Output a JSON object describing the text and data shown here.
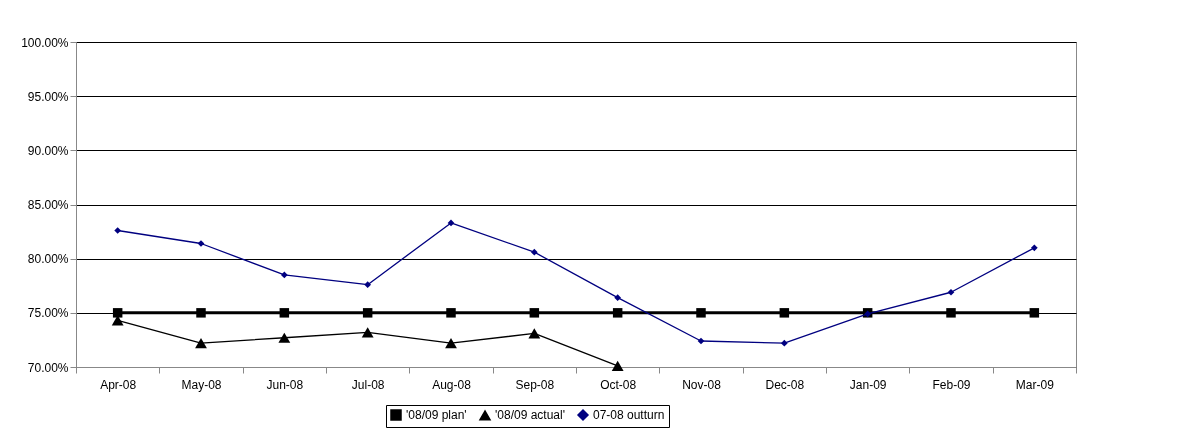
{
  "chart_data": {
    "type": "line",
    "categories": [
      "Apr-08",
      "May-08",
      "Jun-08",
      "Jul-08",
      "Aug-08",
      "Sep-08",
      "Oct-08",
      "Nov-08",
      "Dec-08",
      "Jan-09",
      "Feb-09",
      "Mar-09"
    ],
    "series": [
      {
        "name": "'08/09 plan'",
        "color": "#000000",
        "marker": "square",
        "values": [
          75,
          75,
          75,
          75,
          75,
          75,
          75,
          75,
          75,
          75,
          75,
          75
        ]
      },
      {
        "name": "'08/09 actual'",
        "color": "#000000",
        "marker": "triangle",
        "values": [
          74.3,
          72.2,
          72.7,
          73.2,
          72.2,
          73.1,
          70.1,
          null,
          null,
          null,
          null,
          null
        ]
      },
      {
        "name": "07-08 outturn",
        "color": "#000080",
        "marker": "diamond",
        "values": [
          82.6,
          81.4,
          78.5,
          77.6,
          83.3,
          80.6,
          76.4,
          72.4,
          72.2,
          74.9,
          76.9,
          81.0
        ]
      }
    ],
    "ylim": [
      70,
      100
    ],
    "yticks": [
      {
        "value": 70,
        "label": "70.00%"
      },
      {
        "value": 75,
        "label": "75.00%"
      },
      {
        "value": 80,
        "label": "80.00%"
      },
      {
        "value": 85,
        "label": "85.00%"
      },
      {
        "value": 90,
        "label": "90.00%"
      },
      {
        "value": 95,
        "label": "95.00%"
      },
      {
        "value": 100,
        "label": "100.00%"
      }
    ],
    "grid": "y",
    "legend": "bottom",
    "line_style": "solid"
  }
}
